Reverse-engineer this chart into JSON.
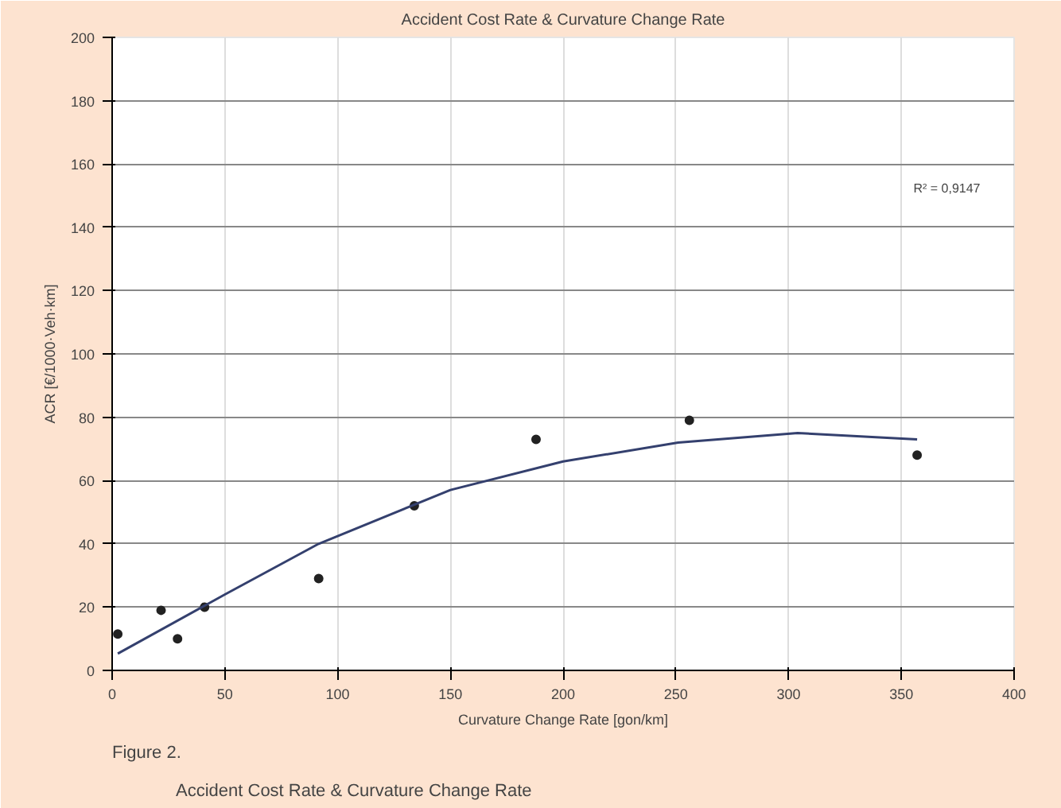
{
  "chart_data": {
    "type": "scatter",
    "title": "Accident Cost Rate & Curvature Change Rate",
    "xlabel": "Curvature Change Rate [gon/km]",
    "ylabel": "ACR [€/1000·Veh·km]",
    "xlim": [
      0,
      400
    ],
    "xticks": [
      0,
      50,
      100,
      150,
      200,
      250,
      300,
      350,
      400
    ],
    "ylim": [
      0,
      200
    ],
    "yticks": [
      0,
      20,
      40,
      60,
      80,
      100,
      120,
      140,
      160,
      180,
      200
    ],
    "grid": true,
    "series": [
      {
        "marker": "circle",
        "color": "#222222",
        "x": [
          2.5,
          21.7,
          29,
          41,
          91.6,
          134,
          188,
          256,
          357
        ],
        "values": [
          11.5,
          19,
          10,
          20,
          29,
          52,
          73,
          79,
          68
        ]
      },
      {
        "type": "line",
        "color": "#34406e",
        "x": [
          2.5,
          50,
          91.6,
          150,
          200,
          251,
          304,
          357
        ],
        "values": [
          5.3,
          24,
          40,
          57,
          66,
          72,
          75,
          73
        ]
      }
    ],
    "annotations": [
      "R² = 0,9147",
      "Figure 2.",
      "Accident Cost Rate & Curvature Change Rate"
    ]
  }
}
